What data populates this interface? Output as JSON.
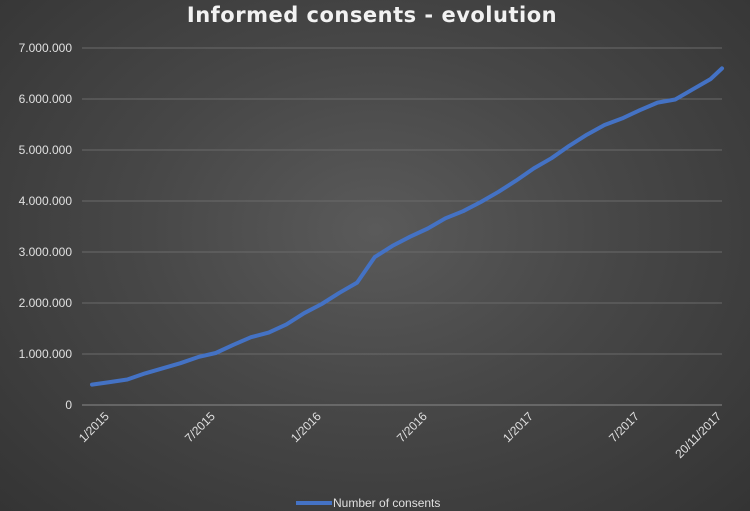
{
  "chart_data": {
    "type": "line",
    "title": "Informed consents - evolution",
    "xlabel": "",
    "ylabel": "",
    "ylim": [
      0,
      7000000
    ],
    "yticks": [
      "0",
      "1.000.000",
      "2.000.000",
      "3.000.000",
      "4.000.000",
      "5.000.000",
      "6.000.000",
      "7.000.000"
    ],
    "ytick_values": [
      0,
      1000000,
      2000000,
      3000000,
      4000000,
      5000000,
      6000000,
      7000000
    ],
    "xticks": [
      "1/2015",
      "7/2015",
      "1/2016",
      "7/2016",
      "1/2017",
      "7/2017",
      "20/11/2017"
    ],
    "xtick_months": [
      1,
      7,
      13,
      19,
      25,
      31,
      35.65
    ],
    "grid": true,
    "legend": "bottom",
    "series": [
      {
        "name": "Number of consents",
        "color": "#4472c4",
        "x_months": [
          0,
          1,
          2,
          3,
          4,
          5,
          6,
          7,
          8,
          9,
          10,
          11,
          12,
          13,
          14,
          15,
          16,
          17,
          18,
          19,
          20,
          21,
          22,
          23,
          24,
          25,
          26,
          27,
          28,
          29,
          30,
          31,
          32,
          33,
          34,
          35,
          35.65
        ],
        "values": [
          400000,
          450000,
          500000,
          620000,
          720000,
          820000,
          940000,
          1020000,
          1180000,
          1330000,
          1420000,
          1580000,
          1800000,
          1980000,
          2200000,
          2400000,
          2900000,
          3120000,
          3300000,
          3460000,
          3660000,
          3800000,
          3980000,
          4180000,
          4400000,
          4640000,
          4840000,
          5080000,
          5300000,
          5490000,
          5620000,
          5780000,
          5930000,
          5990000,
          6190000,
          6390000,
          6600000
        ]
      }
    ]
  }
}
